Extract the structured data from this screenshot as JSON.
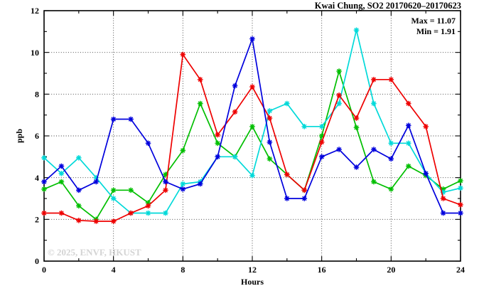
{
  "title": "Kwai Chung, SO2 20170620–20170623",
  "annotations": {
    "max_label": "Max = 11.07",
    "min_label": "Min =  1.91"
  },
  "watermark": "© 2025, ENVF, HKUST",
  "axes": {
    "xlabel": "Hours",
    "ylabel": "ppb"
  },
  "chart_data": {
    "type": "line",
    "title": "Kwai Chung, SO2 20170620–20170623",
    "xlabel": "Hours",
    "ylabel": "ppb",
    "xlim": [
      0,
      24
    ],
    "ylim": [
      0,
      12
    ],
    "xticks_major": [
      0,
      4,
      8,
      12,
      16,
      20,
      24
    ],
    "xticks_minor": [
      2,
      6,
      10,
      14,
      18,
      22
    ],
    "yticks_major": [
      0,
      2,
      4,
      6,
      8,
      10,
      12
    ],
    "yticks_minor": [
      1,
      3,
      5,
      7,
      9,
      11
    ],
    "grid": true,
    "legend_position": "none",
    "marker": "asterisk",
    "stat_max": 11.07,
    "stat_min": 1.91,
    "x": [
      0,
      1,
      2,
      3,
      4,
      5,
      6,
      7,
      8,
      9,
      10,
      11,
      12,
      13,
      14,
      15,
      16,
      17,
      18,
      19,
      20,
      21,
      22,
      23,
      24
    ],
    "series": [
      {
        "name": "green-series",
        "color": "#00bf00",
        "values": [
          3.45,
          3.8,
          2.65,
          2.0,
          3.4,
          3.4,
          2.8,
          4.15,
          5.3,
          7.55,
          5.65,
          5.0,
          6.45,
          4.9,
          4.15,
          3.4,
          6.0,
          9.1,
          6.4,
          3.8,
          3.45,
          4.55,
          4.1,
          3.45,
          3.85
        ]
      },
      {
        "name": "cyan-series",
        "color": "#00d9d9",
        "values": [
          4.95,
          4.2,
          4.95,
          4.0,
          3.0,
          2.3,
          2.3,
          2.3,
          3.7,
          3.8,
          5.0,
          5.0,
          4.1,
          7.2,
          7.55,
          6.45,
          6.45,
          7.55,
          11.07,
          7.55,
          5.65,
          5.65,
          4.2,
          3.3,
          3.5
        ]
      },
      {
        "name": "red-series",
        "color": "#ee0000",
        "values": [
          2.3,
          2.3,
          1.95,
          1.91,
          1.91,
          2.3,
          2.65,
          3.4,
          9.9,
          8.7,
          6.05,
          7.15,
          8.35,
          6.85,
          4.15,
          3.4,
          5.7,
          7.95,
          6.85,
          8.7,
          8.7,
          7.55,
          6.45,
          3.0,
          2.7
        ]
      },
      {
        "name": "blue-series",
        "color": "#0000dd",
        "values": [
          3.8,
          4.55,
          3.4,
          3.8,
          6.8,
          6.8,
          5.65,
          3.8,
          3.45,
          3.7,
          5.0,
          8.4,
          10.65,
          5.7,
          3.0,
          3.0,
          5.0,
          5.35,
          4.5,
          5.35,
          4.9,
          6.5,
          4.2,
          2.3,
          2.3
        ]
      }
    ]
  }
}
